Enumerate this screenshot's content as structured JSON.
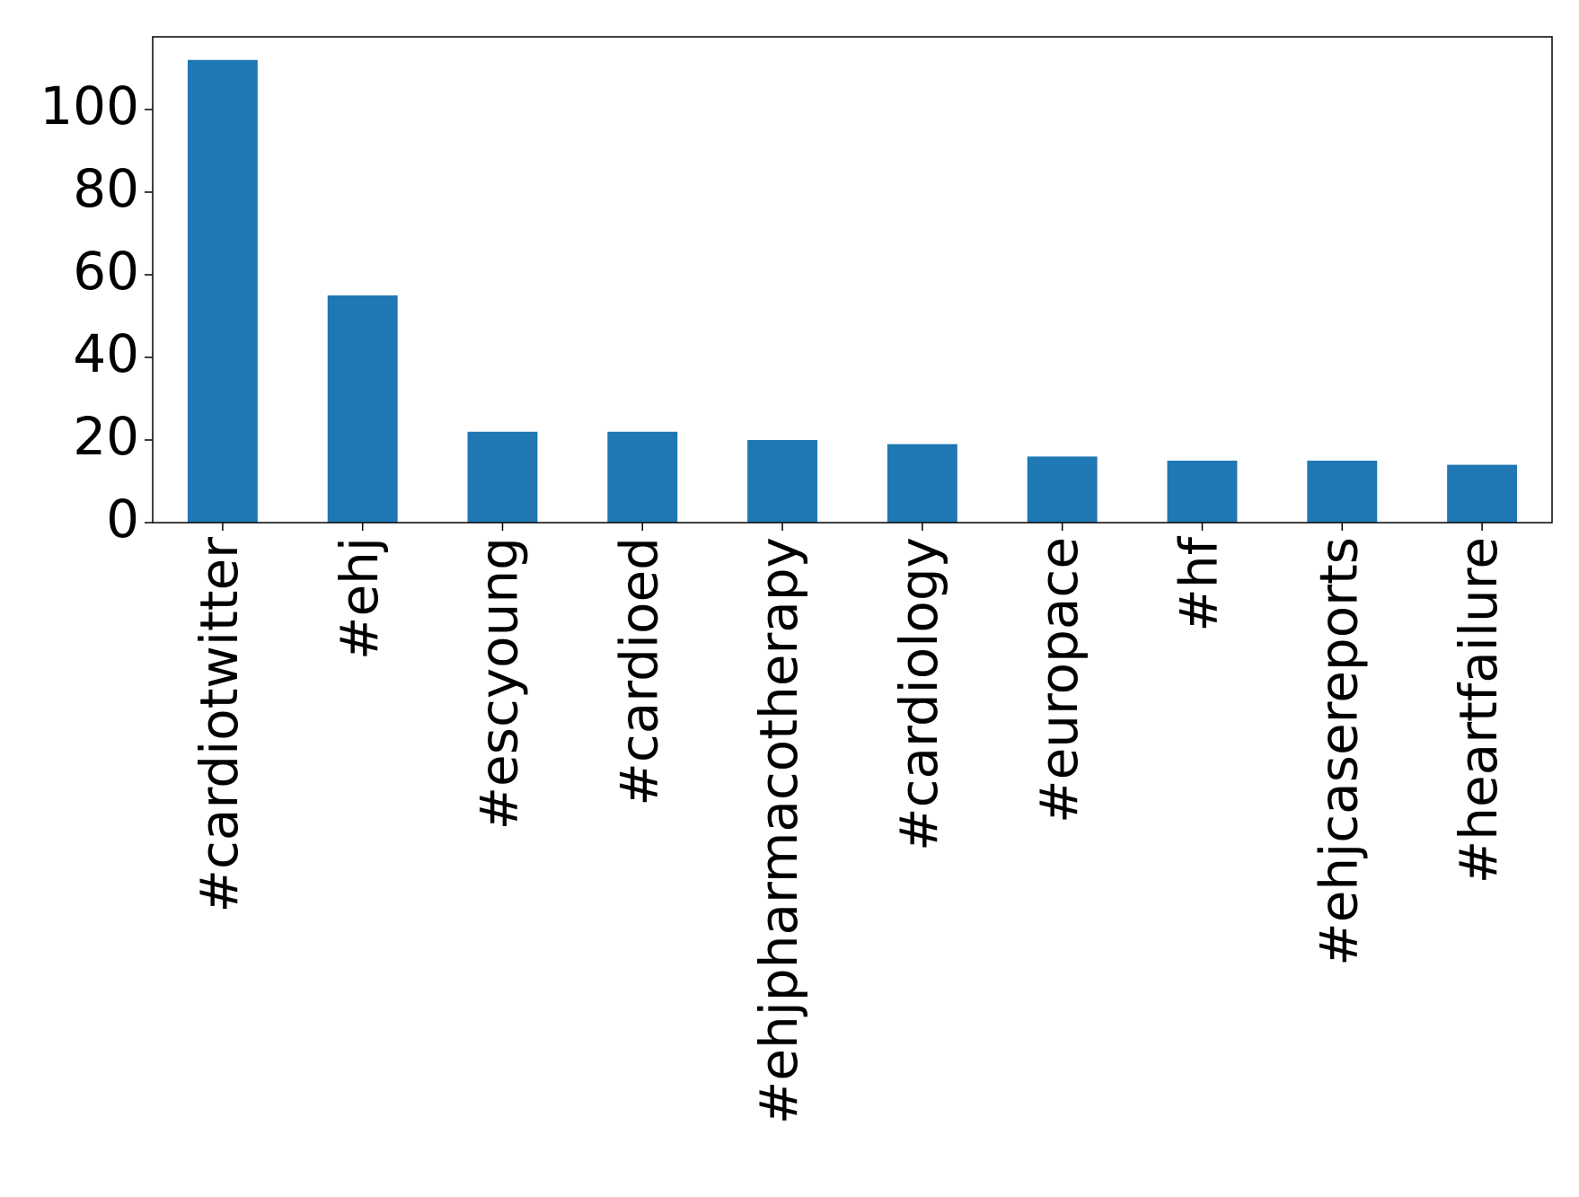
{
  "chart_data": {
    "type": "bar",
    "categories": [
      "#cardiotwitter",
      "#ehj",
      "#escyoung",
      "#cardioed",
      "#ehjpharmacotherapy",
      "#cardiology",
      "#europace",
      "#hf",
      "#ehjcasereports",
      "#heartfailure"
    ],
    "values": [
      112,
      55,
      22,
      22,
      20,
      19,
      16,
      15,
      15,
      14
    ],
    "color": "#1f77b4",
    "ylim": [
      0,
      117.6
    ],
    "yticks": [
      0,
      20,
      40,
      60,
      80,
      100
    ],
    "grid": false
  }
}
